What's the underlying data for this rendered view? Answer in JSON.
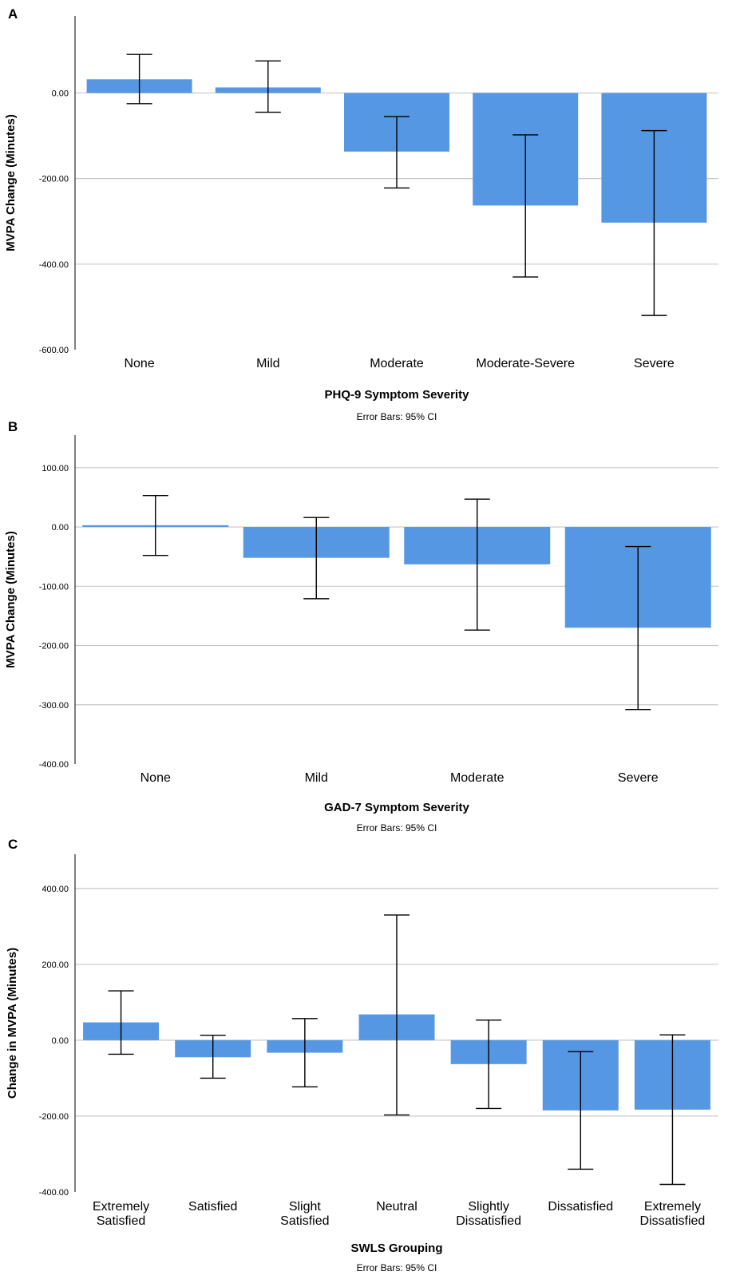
{
  "chart_data": [
    {
      "panel": "A",
      "type": "bar",
      "xlabel": "PHQ-9 Symptom Severity",
      "ylabel": "MVPA Change (Minutes)",
      "note": "Error Bars: 95% CI",
      "categories": [
        "None",
        "Mild",
        "Moderate",
        "Moderate-Severe",
        "Severe"
      ],
      "values": [
        32,
        13,
        -137,
        -263,
        -303
      ],
      "ci_upper": [
        90,
        75,
        -55,
        -98,
        -88
      ],
      "ci_lower": [
        -25,
        -45,
        -222,
        -430,
        -520
      ],
      "yticks": [
        -600,
        -400,
        -200,
        0
      ],
      "ytick_labels": [
        "-600.00",
        "-400.00",
        "-200.00",
        "0.00"
      ],
      "ylim": [
        -600,
        180
      ],
      "grid": true
    },
    {
      "panel": "B",
      "type": "bar",
      "xlabel": "GAD-7 Symptom Severity",
      "ylabel": "MVPA Change (Minutes)",
      "note": "Error Bars: 95% CI",
      "categories": [
        "None",
        "Mild",
        "Moderate",
        "Severe"
      ],
      "values": [
        3,
        -52,
        -63,
        -170
      ],
      "ci_upper": [
        53,
        16,
        47,
        -33
      ],
      "ci_lower": [
        -48,
        -121,
        -174,
        -308
      ],
      "yticks": [
        -400,
        -300,
        -200,
        -100,
        0,
        100
      ],
      "ytick_labels": [
        "-400.00",
        "-300.00",
        "-200.00",
        "-100.00",
        "0.00",
        "100.00"
      ],
      "ylim": [
        -400,
        155
      ],
      "grid": true
    },
    {
      "panel": "C",
      "type": "bar",
      "xlabel": "SWLS Grouping",
      "ylabel": "Change in MVPA (Minutes)",
      "note": "Error Bars: 95% CI",
      "categories": [
        [
          "Extremely",
          "Satisfied"
        ],
        [
          "Satisfied"
        ],
        [
          "Slight",
          "Satisfied"
        ],
        [
          "Neutral"
        ],
        [
          "Slightly",
          "Dissatisfied"
        ],
        [
          "Dissatisfied"
        ],
        [
          "Extremely",
          "Dissatisfied"
        ]
      ],
      "values": [
        47,
        -45,
        -33,
        68,
        -63,
        -185,
        -183
      ],
      "ci_upper": [
        130,
        13,
        57,
        330,
        53,
        -30,
        14
      ],
      "ci_lower": [
        -37,
        -100,
        -123,
        -197,
        -180,
        -340,
        -380
      ],
      "yticks": [
        -400,
        -200,
        0,
        200,
        400
      ],
      "ytick_labels": [
        "-400.00",
        "-200.00",
        "0.00",
        "200.00",
        "400.00"
      ],
      "ylim": [
        -400,
        490
      ],
      "grid": true
    }
  ],
  "colors": {
    "bar": "#5697e3",
    "grid": "#c8c8c8",
    "axis": "#000000",
    "errorbar": "#000000"
  }
}
